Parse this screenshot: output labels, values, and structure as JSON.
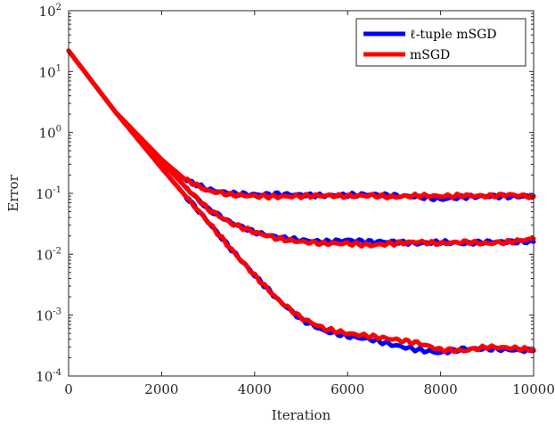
{
  "chart_data": {
    "type": "line",
    "xlabel": "Iteration",
    "ylabel": "Error",
    "xlim": [
      0,
      10000
    ],
    "ylim": [
      0.0001,
      100
    ],
    "yscale": "log",
    "grid": false,
    "legend_position": "top-right",
    "x_ticks": [
      "0",
      "2000",
      "4000",
      "6000",
      "8000",
      "10000"
    ],
    "y_ticks": [
      {
        "base": "10",
        "exp": "-4"
      },
      {
        "base": "10",
        "exp": "-3"
      },
      {
        "base": "10",
        "exp": "-2"
      },
      {
        "base": "10",
        "exp": "-1"
      },
      {
        "base": "10",
        "exp": "0"
      },
      {
        "base": "10",
        "exp": "1"
      },
      {
        "base": "10",
        "exp": "2"
      }
    ],
    "series": [
      {
        "name": "ℓ-tuple mSGD",
        "color": "#0000ff",
        "curves": [
          {
            "x": [
              0,
              1000,
              2000,
              2500,
              3000,
              3500,
              4000,
              4500,
              5000,
              5500,
              6000,
              6500,
              7000,
              7500,
              8000,
              8500,
              9000,
              9500,
              10000
            ],
            "y": [
              22,
              2.2,
              0.36,
              0.17,
              0.115,
              0.1,
              0.095,
              0.097,
              0.094,
              0.092,
              0.094,
              0.096,
              0.092,
              0.088,
              0.08,
              0.087,
              0.09,
              0.088,
              0.09
            ]
          },
          {
            "x": [
              0,
              1000,
              2000,
              2500,
              3000,
              3500,
              4000,
              4500,
              5000,
              5500,
              6000,
              6500,
              7000,
              7500,
              8000,
              8500,
              9000,
              9500,
              10000
            ],
            "y": [
              22,
              2.2,
              0.33,
              0.13,
              0.055,
              0.033,
              0.023,
              0.019,
              0.017,
              0.016,
              0.017,
              0.016,
              0.016,
              0.015,
              0.016,
              0.015,
              0.016,
              0.016,
              0.016
            ]
          },
          {
            "x": [
              0,
              1000,
              2000,
              2500,
              3000,
              3500,
              4000,
              4500,
              5000,
              5500,
              6000,
              6500,
              7000,
              7500,
              8000,
              8500,
              9000,
              9500,
              10000
            ],
            "y": [
              22,
              2.2,
              0.26,
              0.093,
              0.034,
              0.012,
              0.0045,
              0.0018,
              0.00085,
              0.00055,
              0.00045,
              0.0004,
              0.00032,
              0.00027,
              0.00024,
              0.00028,
              0.00028,
              0.00027,
              0.00026
            ]
          }
        ]
      },
      {
        "name": "mSGD",
        "color": "#ff0000",
        "curves": [
          {
            "x": [
              0,
              1000,
              2000,
              2500,
              3000,
              3500,
              4000,
              4500,
              5000,
              5500,
              6000,
              6500,
              7000,
              7500,
              8000,
              8500,
              9000,
              9500,
              10000
            ],
            "y": [
              22,
              2.2,
              0.36,
              0.17,
              0.11,
              0.095,
              0.09,
              0.088,
              0.09,
              0.092,
              0.09,
              0.092,
              0.087,
              0.092,
              0.09,
              0.092,
              0.09,
              0.095,
              0.088
            ]
          },
          {
            "x": [
              0,
              1000,
              2000,
              2500,
              3000,
              3500,
              4000,
              4500,
              5000,
              5500,
              6000,
              6500,
              7000,
              7500,
              8000,
              8500,
              9000,
              9500,
              10000
            ],
            "y": [
              22,
              2.2,
              0.33,
              0.13,
              0.055,
              0.032,
              0.023,
              0.018,
              0.016,
              0.015,
              0.015,
              0.014,
              0.015,
              0.016,
              0.015,
              0.016,
              0.015,
              0.016,
              0.018
            ]
          },
          {
            "x": [
              0,
              1000,
              2000,
              2500,
              3000,
              3500,
              4000,
              4500,
              5000,
              5500,
              6000,
              6500,
              7000,
              7500,
              8000,
              8500,
              9000,
              9500,
              10000
            ],
            "y": [
              22,
              2.2,
              0.26,
              0.093,
              0.034,
              0.012,
              0.0045,
              0.0018,
              0.0009,
              0.0006,
              0.0005,
              0.00045,
              0.0004,
              0.00035,
              0.00027,
              0.00026,
              0.0003,
              0.00029,
              0.00027
            ]
          }
        ]
      }
    ]
  }
}
